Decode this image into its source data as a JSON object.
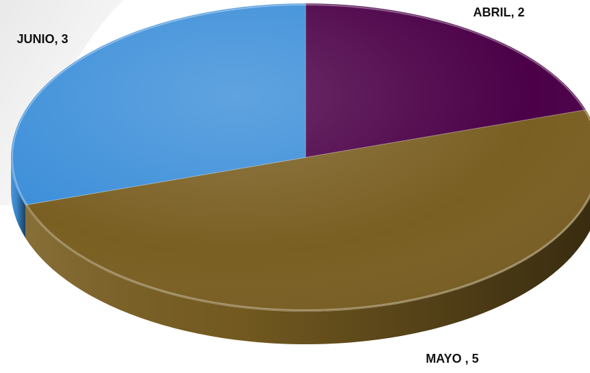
{
  "chart_data": {
    "type": "pie",
    "style": "3d",
    "slices": [
      {
        "label": "ABRIL",
        "value": 2,
        "text": "ABRIL, 2",
        "color": "#4B0047"
      },
      {
        "label": "MAYO",
        "value": 5,
        "text": "MAYO , 5",
        "color": "#7A5F22"
      },
      {
        "label": "JUNIO",
        "value": 3,
        "text": "JUNIO, 3",
        "color": "#3D8FD9"
      }
    ],
    "legend": "none"
  }
}
